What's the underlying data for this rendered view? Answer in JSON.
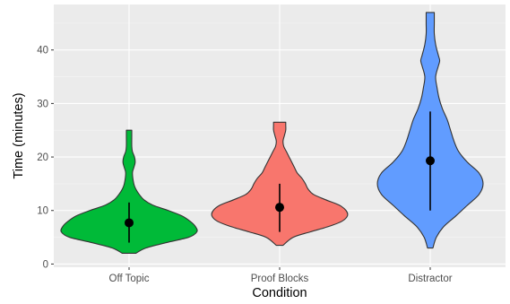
{
  "chart_data": {
    "type": "violin",
    "title": "",
    "xlabel": "Condition",
    "ylabel": "Time (minutes)",
    "categories": [
      "Off Topic",
      "Proof Blocks",
      "Distractor"
    ],
    "ylim": [
      -0.6,
      48.5
    ],
    "yticks": [
      0,
      10,
      20,
      30,
      40
    ],
    "grid": true,
    "legend": "none",
    "panel_background": "#ebebeb",
    "grid_color": "#ffffff",
    "series": [
      {
        "category": "Off Topic",
        "color": "#00ba38",
        "range": [
          2,
          25
        ],
        "mean": 7.7,
        "interval": [
          4,
          11.5
        ],
        "density_profile": [
          [
            2,
            0.1
          ],
          [
            3,
            0.25
          ],
          [
            4,
            0.55
          ],
          [
            5,
            0.88
          ],
          [
            6,
            1.0
          ],
          [
            7,
            0.98
          ],
          [
            8,
            0.9
          ],
          [
            9,
            0.78
          ],
          [
            10,
            0.58
          ],
          [
            11,
            0.35
          ],
          [
            12,
            0.22
          ],
          [
            13,
            0.15
          ],
          [
            14,
            0.1
          ],
          [
            15,
            0.07
          ],
          [
            17,
            0.05
          ],
          [
            18,
            0.07
          ],
          [
            19,
            0.09
          ],
          [
            20,
            0.08
          ],
          [
            21,
            0.05
          ],
          [
            22,
            0.04
          ],
          [
            24,
            0.04
          ],
          [
            25,
            0.04
          ]
        ]
      },
      {
        "category": "Proof Blocks",
        "color": "#f8766d",
        "range": [
          3.5,
          26.5
        ],
        "mean": 10.6,
        "interval": [
          6,
          15
        ],
        "density_profile": [
          [
            3.5,
            0.05
          ],
          [
            5,
            0.2
          ],
          [
            6,
            0.45
          ],
          [
            7,
            0.72
          ],
          [
            8,
            0.92
          ],
          [
            9,
            1.0
          ],
          [
            10,
            0.98
          ],
          [
            11,
            0.88
          ],
          [
            12,
            0.68
          ],
          [
            13,
            0.5
          ],
          [
            14,
            0.42
          ],
          [
            15,
            0.38
          ],
          [
            16,
            0.33
          ],
          [
            17,
            0.26
          ],
          [
            18,
            0.22
          ],
          [
            19,
            0.18
          ],
          [
            20,
            0.14
          ],
          [
            21,
            0.1
          ],
          [
            22,
            0.06
          ],
          [
            23,
            0.05
          ],
          [
            24,
            0.07
          ],
          [
            25,
            0.09
          ],
          [
            26,
            0.09
          ],
          [
            26.5,
            0.09
          ]
        ]
      },
      {
        "category": "Distractor",
        "color": "#619cff",
        "range": [
          3,
          47
        ],
        "mean": 19.3,
        "interval": [
          10,
          28.5
        ],
        "density_profile": [
          [
            3,
            0.04
          ],
          [
            5,
            0.09
          ],
          [
            7,
            0.2
          ],
          [
            9,
            0.38
          ],
          [
            11,
            0.55
          ],
          [
            13,
            0.72
          ],
          [
            15,
            0.78
          ],
          [
            17,
            0.72
          ],
          [
            19,
            0.55
          ],
          [
            21,
            0.42
          ],
          [
            23,
            0.35
          ],
          [
            25,
            0.3
          ],
          [
            27,
            0.25
          ],
          [
            29,
            0.18
          ],
          [
            31,
            0.13
          ],
          [
            33,
            0.1
          ],
          [
            35,
            0.08
          ],
          [
            37,
            0.12
          ],
          [
            38,
            0.14
          ],
          [
            39,
            0.12
          ],
          [
            41,
            0.08
          ],
          [
            43,
            0.06
          ],
          [
            45,
            0.06
          ],
          [
            47,
            0.06
          ]
        ]
      }
    ]
  }
}
